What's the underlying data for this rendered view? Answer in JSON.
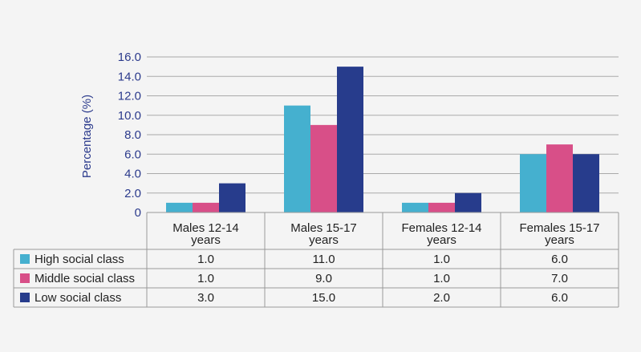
{
  "chart_data": {
    "type": "bar",
    "ylabel": "Percentage (%)",
    "ylim": [
      0,
      16
    ],
    "yticks": [
      "0",
      "2.0",
      "4.0",
      "6.0",
      "8.0",
      "10.0",
      "12.0",
      "14.0",
      "16.0"
    ],
    "categories": [
      [
        "Males 12-14",
        "years"
      ],
      [
        "Males 15-17",
        "years"
      ],
      [
        "Females 12-14",
        "years"
      ],
      [
        "Females 15-17",
        "years"
      ]
    ],
    "series": [
      {
        "name": "High social class",
        "color": "#45b0cf",
        "values": [
          1.0,
          11.0,
          1.0,
          6.0
        ],
        "labels": [
          "1.0",
          "11.0",
          "1.0",
          "6.0"
        ]
      },
      {
        "name": "Middle social class",
        "color": "#d84f88",
        "values": [
          1.0,
          9.0,
          1.0,
          7.0
        ],
        "labels": [
          "1.0",
          "9.0",
          "1.0",
          "7.0"
        ]
      },
      {
        "name": "Low social class",
        "color": "#273c8c",
        "values": [
          3.0,
          15.0,
          2.0,
          6.0
        ],
        "labels": [
          "3.0",
          "15.0",
          "2.0",
          "6.0"
        ]
      }
    ],
    "grid": true,
    "legend": "data-table"
  }
}
